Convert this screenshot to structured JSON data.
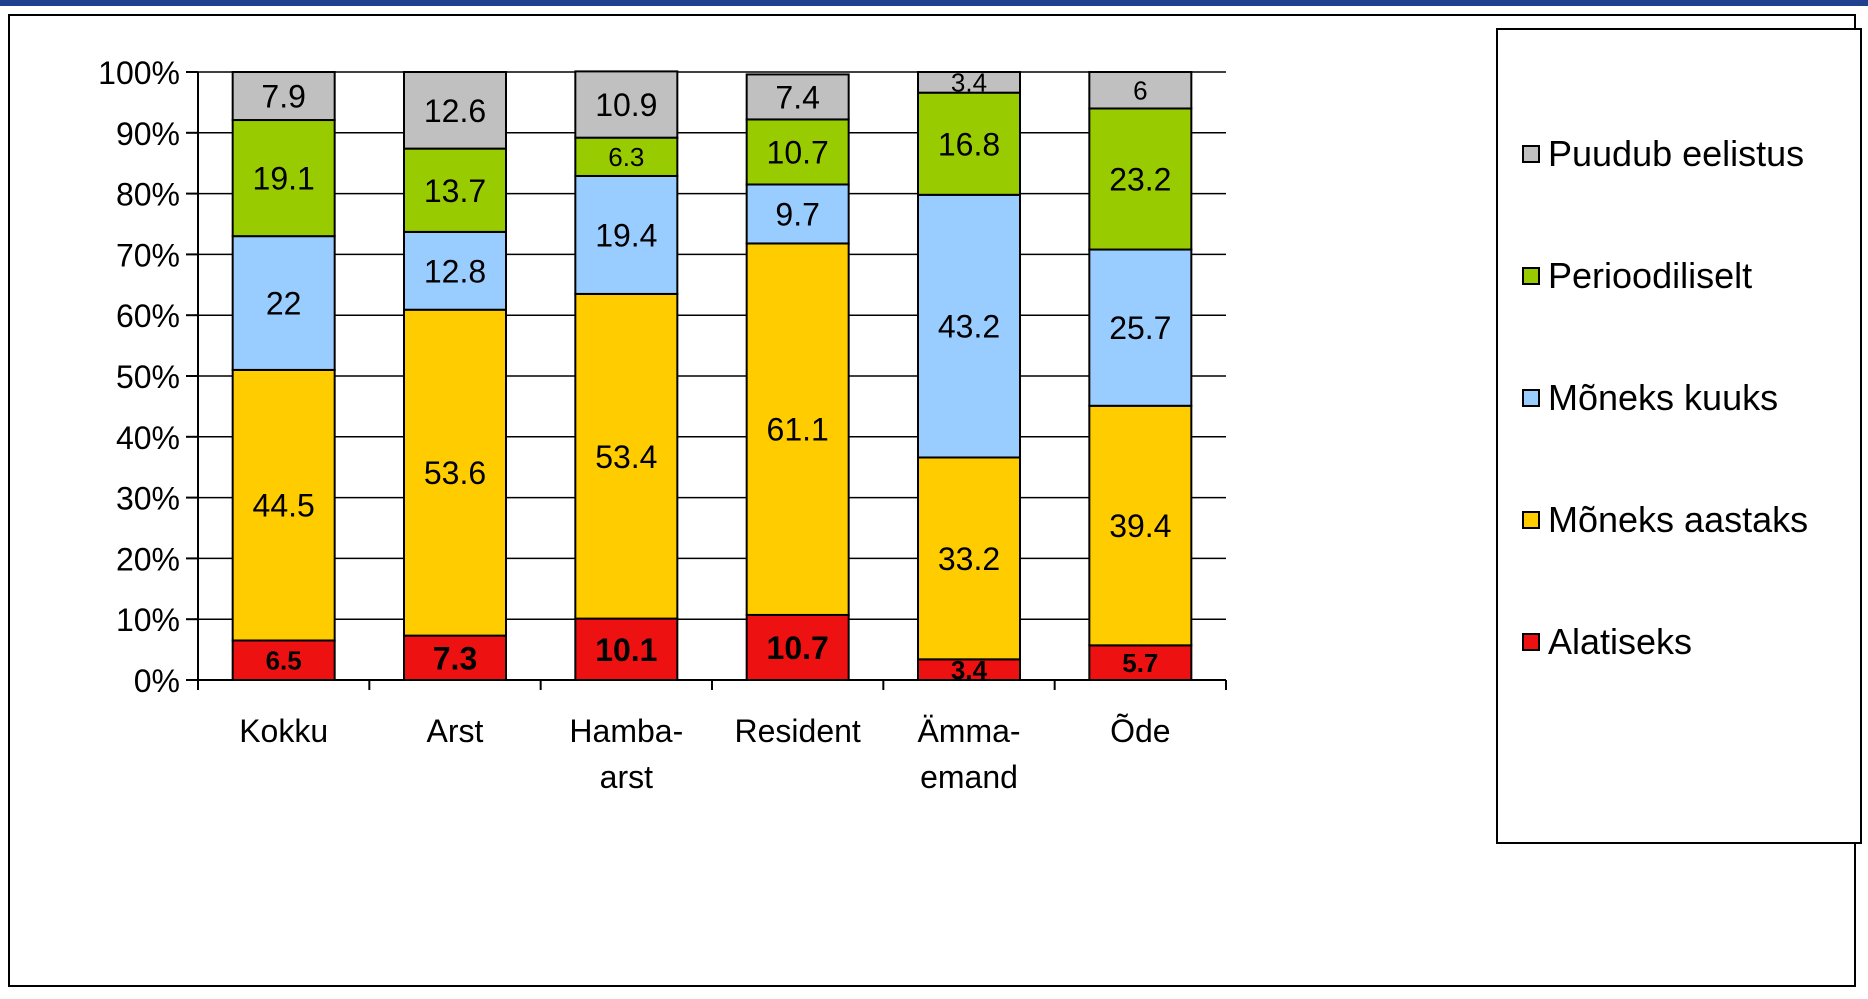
{
  "chart_data": {
    "type": "bar",
    "stacked": true,
    "percent_stacked": true,
    "categories": [
      "Kokku",
      "Arst",
      "Hamba-\narst",
      "Resident",
      "Ämma-\nemand",
      "Õde"
    ],
    "series": [
      {
        "name": "Alatiseks",
        "color": "#ee1111",
        "values": [
          6.5,
          7.3,
          10.1,
          10.7,
          3.4,
          5.7
        ],
        "label_bold": true
      },
      {
        "name": "Mõneks aastaks",
        "color": "#ffcc00",
        "values": [
          44.5,
          53.6,
          53.4,
          61.1,
          33.2,
          39.4
        ],
        "label_bold": false
      },
      {
        "name": "Mõneks kuuks",
        "color": "#99ccff",
        "values": [
          22,
          12.8,
          19.4,
          9.7,
          43.2,
          25.7
        ],
        "label_bold": false
      },
      {
        "name": "Perioodiliselt",
        "color": "#99cc00",
        "values": [
          19.1,
          13.7,
          6.3,
          10.7,
          16.8,
          23.2
        ],
        "label_bold": false
      },
      {
        "name": "Puudub eelistus",
        "color": "#c0c0c0",
        "values": [
          7.9,
          12.6,
          10.9,
          7.4,
          3.4,
          6
        ],
        "label_bold": false
      }
    ],
    "y_ticks": [
      "0%",
      "10%",
      "20%",
      "30%",
      "40%",
      "50%",
      "60%",
      "70%",
      "80%",
      "90%",
      "100%"
    ],
    "ylim": [
      0,
      100
    ],
    "grid": true,
    "legend_position": "right",
    "title": "",
    "xlabel": "",
    "ylabel": ""
  },
  "colors": {
    "accent_top": "#1f3f8f",
    "axis": "#000000",
    "grid": "#000000"
  }
}
